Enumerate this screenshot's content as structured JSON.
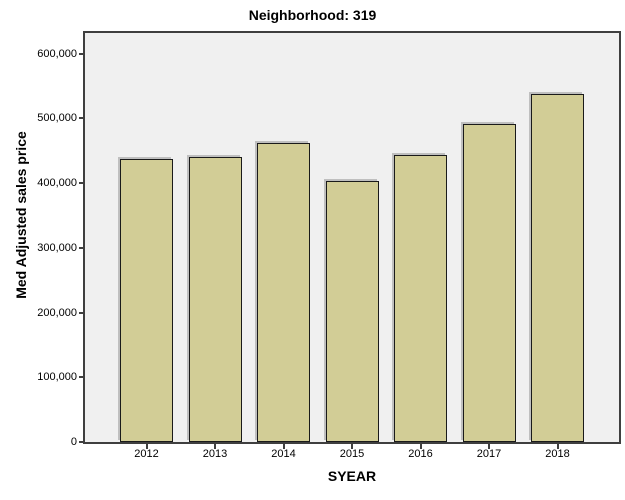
{
  "chart_data": {
    "type": "bar",
    "title": "Neighborhood: 319",
    "xlabel": "SYEAR",
    "ylabel": "Med Adjusted sales price",
    "categories": [
      "2012",
      "2013",
      "2014",
      "2015",
      "2016",
      "2017",
      "2018"
    ],
    "values": [
      437000,
      440000,
      462000,
      403000,
      443000,
      492000,
      537000
    ],
    "ylim": [
      0,
      632000
    ],
    "y_ticks": [
      0,
      100000,
      200000,
      300000,
      400000,
      500000,
      600000
    ],
    "y_tick_labels": [
      "0",
      "100,000",
      "200,000",
      "300,000",
      "400,000",
      "500,000",
      "600,000"
    ],
    "grid": false,
    "legend": "none",
    "colors": {
      "background": "#ffffff",
      "plot_background": "#f0f0f0",
      "frame_border": "#3f3f3f",
      "bar_fill": "#d2cd96",
      "bar_border": "#1a1a1a",
      "text": "#000000"
    }
  }
}
